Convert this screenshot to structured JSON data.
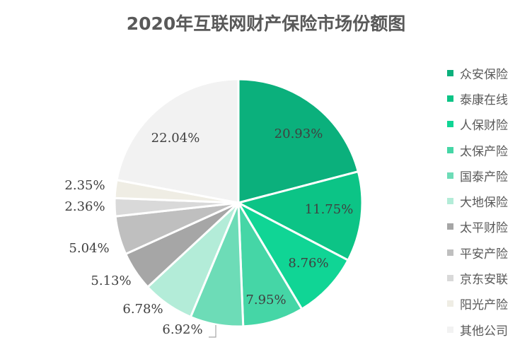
{
  "chart_data": {
    "type": "pie",
    "title": "2020年互联网财产保险市场份额图",
    "categories": [
      "众安保险",
      "泰康在线",
      "人保财险",
      "太保产险",
      "国泰产险",
      "大地保险",
      "太平财险",
      "平安产险",
      "京东安联",
      "阳光产险",
      "其他公司"
    ],
    "values": [
      20.93,
      11.75,
      8.76,
      7.95,
      6.92,
      6.78,
      5.13,
      5.04,
      2.36,
      2.35,
      22.04
    ],
    "data_labels": [
      "20.93%",
      "11.75%",
      "8.76%",
      "7.95%",
      "6.92%",
      "6.78%",
      "5.13%",
      "5.04%",
      "2.36%",
      "2.35%",
      "22.04%"
    ],
    "colors": [
      "#0bb07c",
      "#0cc486",
      "#10d595",
      "#45d6a6",
      "#6ddcb7",
      "#b3ecd8",
      "#a6a6a6",
      "#bfbfbf",
      "#d9d9d9",
      "#efede4",
      "#f2f2f2"
    ],
    "start_angle": "12 o'clock",
    "direction": "clockwise",
    "legend_placement": "right"
  }
}
